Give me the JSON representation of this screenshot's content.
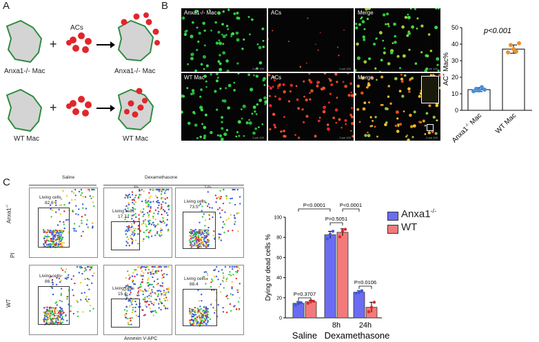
{
  "panels": {
    "a": "A",
    "b": "B",
    "c": "C"
  },
  "schematic": {
    "acs_label": "ACs",
    "plus": "+",
    "knockout_label": "Anxa1-/- Mac",
    "knockout_result_label": "Anxa1-/- Mac",
    "wt_label": "WT Mac",
    "wt_result_label": "WT Mac",
    "colors": {
      "macrophage_fill": "#d4d4d4",
      "macrophage_outline": "#2e8b3e",
      "ac": "#e0262b"
    }
  },
  "microscopy": {
    "columns": [
      "Anxa1-/- Mac",
      "ACs",
      "Merge"
    ],
    "wt_columns": [
      "WT Mac",
      "ACs",
      "Merge"
    ],
    "scale_text": "0 μm 100"
  },
  "chart_data": [
    {
      "type": "bar",
      "title": "",
      "annotation": "p<0.001",
      "categories": [
        "Anxa1-/- Mac",
        "WT Mac"
      ],
      "category_labels": [
        {
          "base": "Anxa1",
          "sup": "-/-",
          "rest": " Mac"
        },
        {
          "base": "WT Mac",
          "sup": "",
          "rest": ""
        }
      ],
      "values": [
        12.5,
        37
      ],
      "errors": [
        1.2,
        2.5
      ],
      "points": [
        [
          11.5,
          13.0,
          12.0,
          14.0,
          12.5
        ],
        [
          35.0,
          39.5,
          37.0,
          35.5,
          40.5
        ]
      ],
      "point_colors": [
        "#4a90d9",
        "#e8922e"
      ],
      "ylabel": {
        "base": "AC",
        "sup": "+",
        "rest": " Mac%"
      },
      "ylim": [
        0,
        50
      ],
      "yticks": [
        "0",
        "10",
        "20",
        "30",
        "40",
        "50"
      ]
    },
    {
      "type": "bar",
      "title": "",
      "ylabel": "Dying or dead cells %",
      "xlabel_groups": [
        "Saline",
        "Dexamethasone"
      ],
      "time_labels": [
        "8h",
        "24h"
      ],
      "categories": [
        "Saline",
        "8h",
        "24h"
      ],
      "ylim": [
        0,
        100
      ],
      "yticks": [
        "0",
        "20",
        "40",
        "60",
        "80",
        "100"
      ],
      "series": [
        {
          "name": "Anxa1-/-",
          "name_base": "Anxa1",
          "name_sup": "-/-",
          "color": "#6b6cf2",
          "values": [
            14.5,
            82.5,
            25.5
          ],
          "errors": [
            1.5,
            3.5,
            1.5
          ],
          "points": [
            [
              12.5,
              15.5,
              15.0
            ],
            [
              78.5,
              83.0,
              86.0
            ],
            [
              24.5,
              26.0,
              27.0
            ]
          ]
        },
        {
          "name": "WT",
          "name_base": "WT",
          "name_sup": "",
          "color": "#f27a7a",
          "values": [
            16.0,
            85.0,
            10.5
          ],
          "errors": [
            1.5,
            3.5,
            5.0
          ],
          "points": [
            [
              14.5,
              17.0,
              16.5
            ],
            [
              80.5,
              86.5,
              88.0
            ],
            [
              6.0,
              10.5,
              15.5
            ]
          ]
        }
      ],
      "comparisons": [
        "P=0.3707",
        "P<0.0001",
        "P=0.5051",
        "P<0.0001",
        "P=0.0106"
      ]
    }
  ],
  "flow": {
    "group_saline": "Saline",
    "group_dex": "Dexamethasone",
    "time_8h": "8h",
    "time_24h": "24h",
    "row_anxa": {
      "base": "Anxa1",
      "sup": "-/-"
    },
    "row_wt": "WT",
    "yaxis": "PI",
    "xaxis": "Annexin V-APC",
    "gate_name": "Living cells",
    "values": [
      "82.6",
      "17.7",
      "73.5",
      "86.1",
      "15.4",
      "88.4"
    ]
  }
}
